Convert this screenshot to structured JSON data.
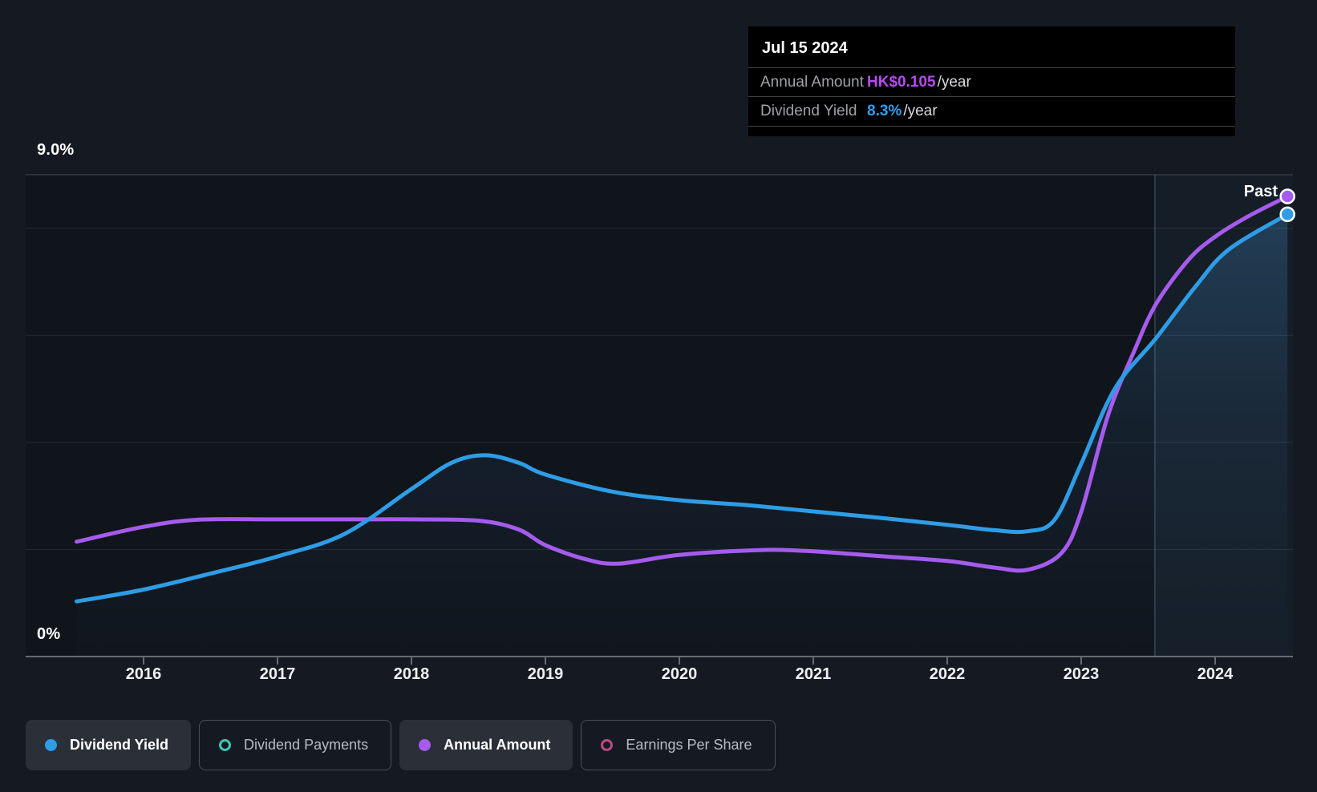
{
  "past_label": "Past",
  "axis": {
    "y_top_label": "9.0%",
    "y_bottom_label": "0%",
    "years": [
      "2016",
      "2017",
      "2018",
      "2019",
      "2020",
      "2021",
      "2022",
      "2023",
      "2024"
    ]
  },
  "tooltip": {
    "date": "Jul 15 2024",
    "rows": [
      {
        "label": "Annual Amount",
        "value": "HK$0.105",
        "suffix": "/year",
        "value_color": "#b44cf0"
      },
      {
        "label": "Dividend Yield",
        "value": "8.3%",
        "suffix": "/year",
        "value_color": "#2f9ff0"
      }
    ]
  },
  "legend": [
    {
      "label": "Dividend Yield",
      "marker": "dot",
      "color": "#2e9de6",
      "active": true
    },
    {
      "label": "Dividend Payments",
      "marker": "ring",
      "color": "#3fc8b4",
      "active": false
    },
    {
      "label": "Annual Amount",
      "marker": "dot",
      "color": "#a55bec",
      "active": true
    },
    {
      "label": "Earnings Per Share",
      "marker": "ring",
      "color": "#bc4a80",
      "active": false
    }
  ],
  "chart_data": {
    "type": "line",
    "title": "Dividend history: yield and annual amount over time",
    "x_axis": {
      "tick_years": [
        2016,
        2017,
        2018,
        2019,
        2020,
        2021,
        2022,
        2023,
        2024
      ],
      "range": [
        2015.45,
        2024.6
      ]
    },
    "y_axis_pct": {
      "range": [
        0,
        9
      ],
      "gridlines": [
        9,
        8,
        6,
        4,
        2,
        0
      ]
    },
    "past_boundary_year": 2023.55,
    "last_point": {
      "date": "Jul 15 2024",
      "annual_amount_hkd": 0.105,
      "dividend_yield_pct": 8.3
    },
    "series": [
      {
        "name": "Dividend Yield",
        "unit": "%",
        "color": "#2e9de6",
        "points": [
          [
            2015.5,
            1.03
          ],
          [
            2016.0,
            1.25
          ],
          [
            2016.5,
            1.55
          ],
          [
            2017.0,
            1.87
          ],
          [
            2017.5,
            2.29
          ],
          [
            2018.0,
            3.13
          ],
          [
            2018.3,
            3.62
          ],
          [
            2018.55,
            3.76
          ],
          [
            2018.8,
            3.62
          ],
          [
            2019.0,
            3.4
          ],
          [
            2019.5,
            3.08
          ],
          [
            2020.0,
            2.92
          ],
          [
            2020.5,
            2.83
          ],
          [
            2021.0,
            2.71
          ],
          [
            2021.5,
            2.59
          ],
          [
            2022.0,
            2.46
          ],
          [
            2022.35,
            2.36
          ],
          [
            2022.6,
            2.34
          ],
          [
            2022.8,
            2.55
          ],
          [
            2023.0,
            3.6
          ],
          [
            2023.25,
            5.0
          ],
          [
            2023.56,
            5.95
          ],
          [
            2023.85,
            6.9
          ],
          [
            2024.1,
            7.6
          ],
          [
            2024.54,
            8.26
          ]
        ]
      },
      {
        "name": "Annual Amount",
        "unit": "HK$/year",
        "color": "#a55bec",
        "points": [
          [
            2015.5,
            0.0262
          ],
          [
            2016.0,
            0.0296
          ],
          [
            2016.4,
            0.0312
          ],
          [
            2017.0,
            0.0313
          ],
          [
            2017.6,
            0.0313
          ],
          [
            2018.0,
            0.0313
          ],
          [
            2018.5,
            0.031
          ],
          [
            2018.8,
            0.029
          ],
          [
            2019.0,
            0.0254
          ],
          [
            2019.3,
            0.0222
          ],
          [
            2019.55,
            0.0212
          ],
          [
            2020.0,
            0.0232
          ],
          [
            2020.6,
            0.0243
          ],
          [
            2021.0,
            0.024
          ],
          [
            2021.5,
            0.0229
          ],
          [
            2022.0,
            0.0218
          ],
          [
            2022.35,
            0.0203
          ],
          [
            2022.6,
            0.0198
          ],
          [
            2022.85,
            0.0235
          ],
          [
            2023.0,
            0.033
          ],
          [
            2023.2,
            0.055
          ],
          [
            2023.4,
            0.07
          ],
          [
            2023.56,
            0.0805
          ],
          [
            2023.8,
            0.0905
          ],
          [
            2024.0,
            0.0958
          ],
          [
            2024.25,
            0.1005
          ],
          [
            2024.54,
            0.105
          ]
        ]
      }
    ]
  },
  "colors": {
    "background": "#151a22",
    "yield_line": "#2e9de6",
    "amount_line": "#a55bec",
    "payments_marker": "#3fc8b4",
    "eps_marker": "#bc4a80",
    "tooltip_bg": "#000000"
  }
}
